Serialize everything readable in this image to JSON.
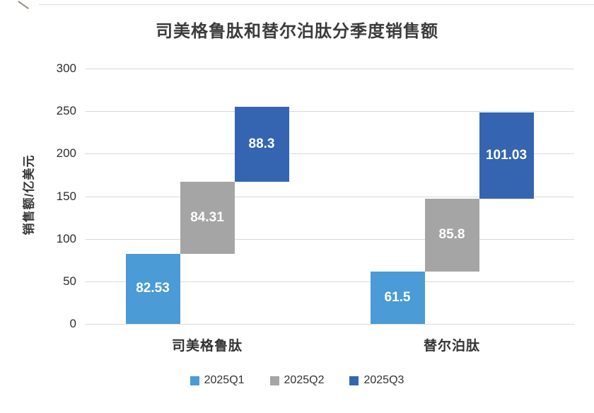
{
  "chart_data": {
    "type": "bar",
    "variant": "stacked-waterfall-columns",
    "title": "司美格鲁肽和替尔泊肽分季度销售额",
    "xlabel": "",
    "ylabel": "销售额/亿美元",
    "categories": [
      "司美格鲁肽",
      "替尔泊肽"
    ],
    "series": [
      {
        "name": "2025Q1",
        "color": "#4a9bd6",
        "values": [
          82.53,
          61.5
        ],
        "labels": [
          "82.53",
          "61.5"
        ]
      },
      {
        "name": "2025Q2",
        "color": "#a5a5a5",
        "values": [
          84.31,
          85.8
        ],
        "labels": [
          "84.31",
          "85.8"
        ]
      },
      {
        "name": "2025Q3",
        "color": "#3565b0",
        "values": [
          88.3,
          101.03
        ],
        "labels": [
          "88.3",
          "101.03"
        ]
      }
    ],
    "totals": [
      255.14,
      248.33
    ],
    "ylim": [
      0,
      300
    ],
    "yticks": [
      0,
      50,
      100,
      150,
      200,
      250,
      300
    ],
    "grid": true,
    "gridline_color": "#d9d9d9",
    "value_label_color": "#ffffff",
    "legend_position": "bottom"
  }
}
